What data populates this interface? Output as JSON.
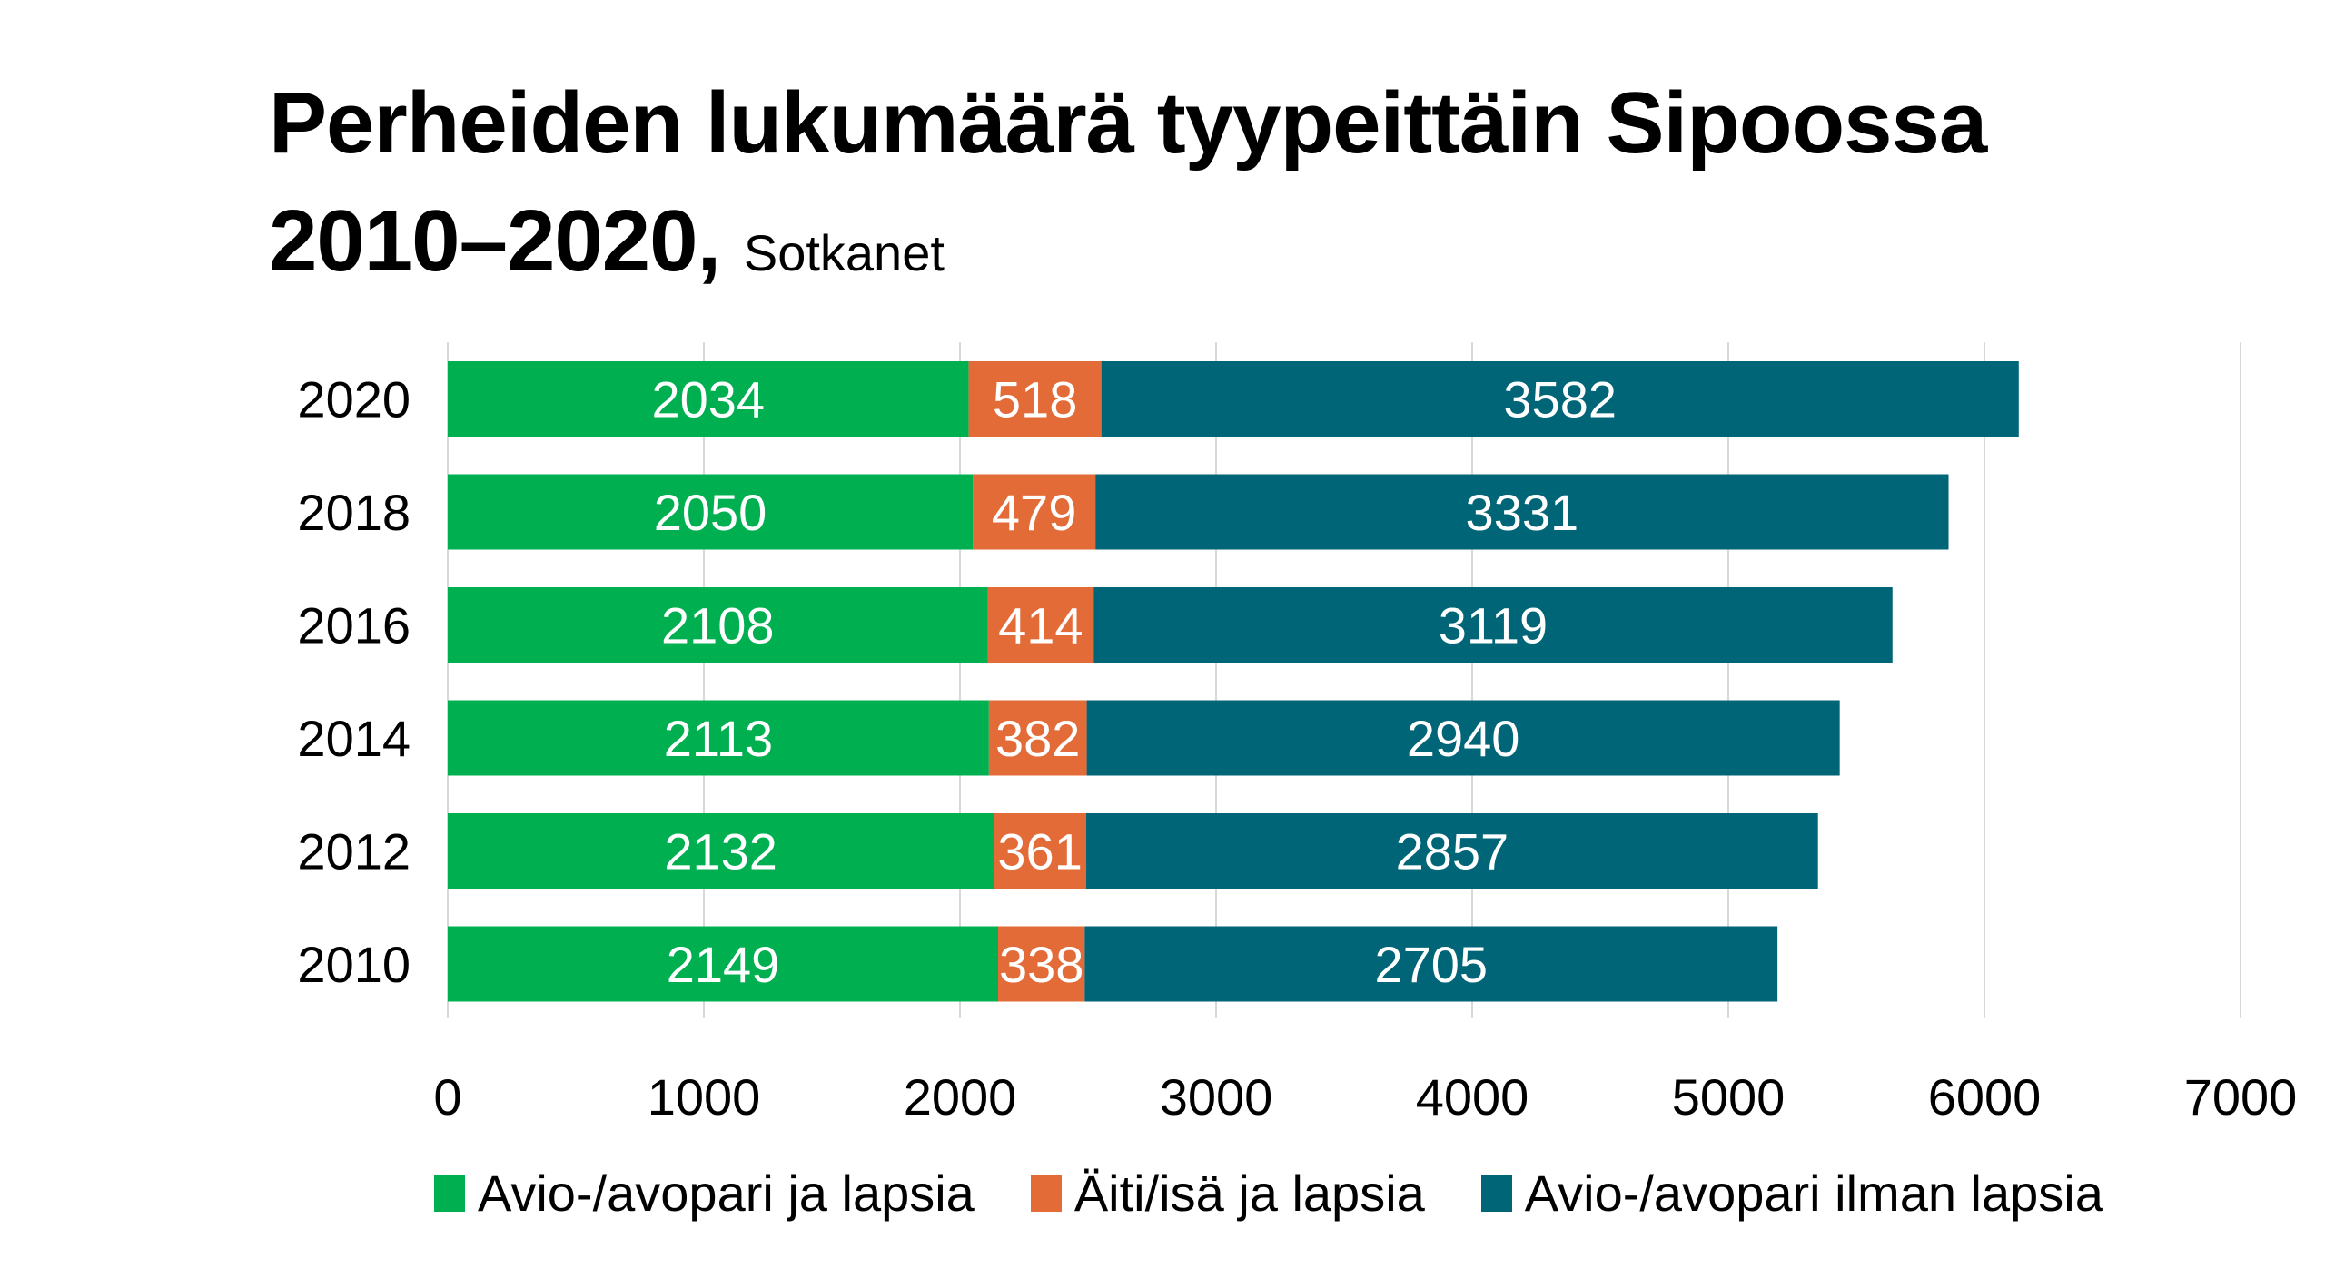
{
  "title": {
    "line1": "Perheiden lukumäärä tyypeittäin Sipoossa",
    "line2": "2010–2020,",
    "source": "Sotkanet"
  },
  "chart_data": {
    "type": "bar",
    "orientation": "horizontal",
    "stacked": true,
    "title": "Perheiden lukumäärä tyypeittäin Sipoossa 2010–2020, Sotkanet",
    "categories": [
      "2020",
      "2018",
      "2016",
      "2014",
      "2012",
      "2010"
    ],
    "series": [
      {
        "name": "Avio-/avopari ja lapsia",
        "color": "#00AF50",
        "values": [
          2034,
          2050,
          2108,
          2113,
          2132,
          2149
        ]
      },
      {
        "name": "Äiti/isä ja lapsia",
        "color": "#E36B37",
        "values": [
          518,
          479,
          414,
          382,
          361,
          338
        ]
      },
      {
        "name": "Avio-/avopari ilman lapsia",
        "color": "#006577",
        "values": [
          3582,
          3331,
          3119,
          2940,
          2857,
          2705
        ]
      }
    ],
    "xlim": [
      0,
      7000
    ],
    "xticks": [
      "0",
      "1000",
      "2000",
      "3000",
      "4000",
      "5000",
      "6000",
      "7000"
    ],
    "xlabel": "",
    "ylabel": "",
    "grid": "vertical",
    "legend": "bottom",
    "data_labels": true
  }
}
